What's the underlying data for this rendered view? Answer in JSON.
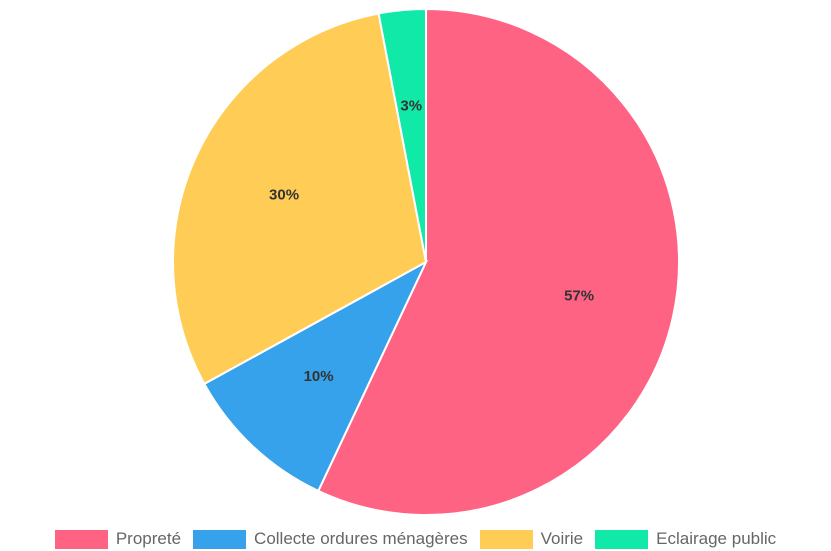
{
  "chart_data": {
    "type": "pie",
    "categories": [
      "Propreté",
      "Collecte ordures ménagères",
      "Voirie",
      "Eclairage public"
    ],
    "values": [
      57,
      10,
      30,
      3
    ],
    "value_labels": [
      "57%",
      "10%",
      "30%",
      "3%"
    ],
    "colors": [
      "#ff6384",
      "#36a2eb",
      "#ffcd56",
      "#10e9a8"
    ],
    "legend_position": "bottom"
  }
}
